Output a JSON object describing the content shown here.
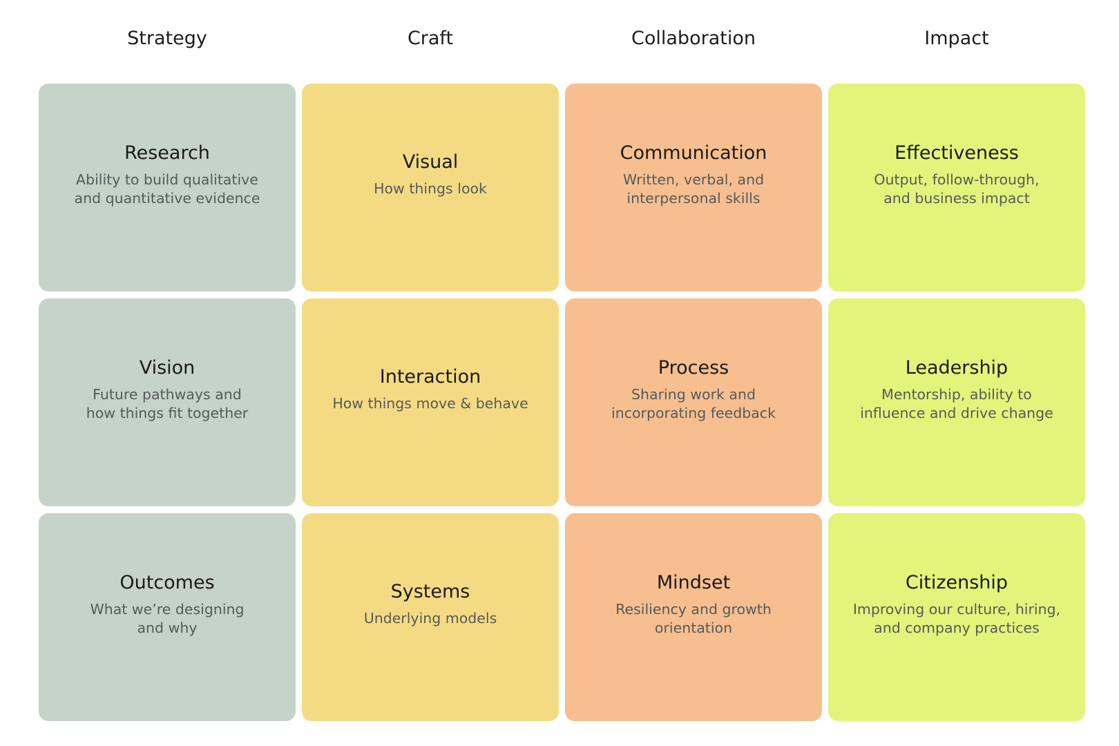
{
  "columns": [
    {
      "header": "Strategy",
      "color": "#c5d3cb"
    },
    {
      "header": "Craft",
      "color": "#f4db83"
    },
    {
      "header": "Collaboration",
      "color": "#f7bf90"
    },
    {
      "header": "Impact",
      "color": "#e3f47b"
    }
  ],
  "cards": [
    [
      {
        "title": "Research",
        "desc": "Ability to build qualitative\nand quantitative evidence"
      },
      {
        "title": "Visual",
        "desc": "How things look"
      },
      {
        "title": "Communication",
        "desc": "Written, verbal, and\ninterpersonal skills"
      },
      {
        "title": "Effectiveness",
        "desc": "Output, follow-through,\nand business impact"
      }
    ],
    [
      {
        "title": "Vision",
        "desc": "Future pathways and\nhow things fit together"
      },
      {
        "title": "Interaction",
        "desc": "How things move & behave"
      },
      {
        "title": "Process",
        "desc": "Sharing work and\nincorporating feedback"
      },
      {
        "title": "Leadership",
        "desc": "Mentorship, ability to\ninfluence and drive change"
      }
    ],
    [
      {
        "title": "Outcomes",
        "desc": "What we’re designing\nand why"
      },
      {
        "title": "Systems",
        "desc": "Underlying models"
      },
      {
        "title": "Mindset",
        "desc": "Resiliency and growth orientation"
      },
      {
        "title": "Citizenship",
        "desc": "Improving our culture, hiring,\nand company practices"
      }
    ]
  ]
}
